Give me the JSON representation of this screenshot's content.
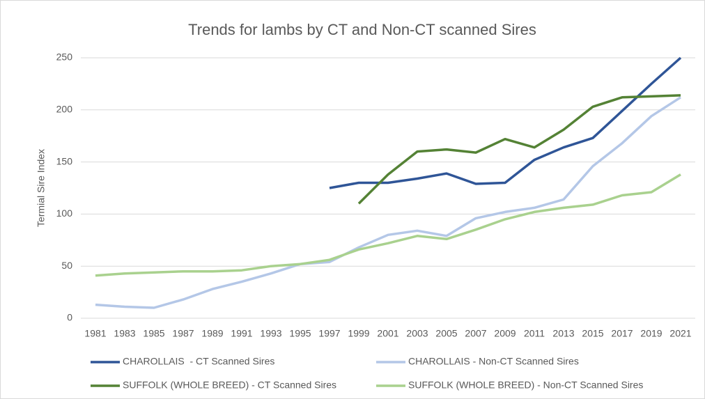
{
  "chart_data": {
    "type": "line",
    "title": "Trends for lambs by CT and Non-CT scanned Sires",
    "y_label": "Termial Sire Index",
    "categories": [
      "1981",
      "1983",
      "1985",
      "1987",
      "1989",
      "1991",
      "1993",
      "1995",
      "1997",
      "1999",
      "2001",
      "2003",
      "2005",
      "2007",
      "2009",
      "2011",
      "2013",
      "2015",
      "2017",
      "2019",
      "2021"
    ],
    "series": [
      {
        "name": "CHAROLLAIS  - CT Scanned Sires",
        "color": "#2f5597",
        "values": [
          null,
          null,
          null,
          null,
          null,
          null,
          null,
          null,
          125,
          130,
          130,
          134,
          139,
          129,
          130,
          152,
          164,
          173,
          199,
          225,
          250
        ]
      },
      {
        "name": "CHAROLLAIS - Non-CT Scanned Sires",
        "color": "#b4c7e7",
        "values": [
          13,
          11,
          10,
          18,
          28,
          35,
          43,
          52,
          54,
          68,
          80,
          84,
          79,
          96,
          102,
          106,
          114,
          146,
          168,
          194,
          212
        ]
      },
      {
        "name": "SUFFOLK (WHOLE BREED) - CT Scanned Sires",
        "color": "#548235",
        "values": [
          null,
          null,
          null,
          null,
          null,
          null,
          null,
          null,
          null,
          110,
          138,
          160,
          162,
          159,
          172,
          164,
          181,
          203,
          212,
          213,
          214
        ]
      },
      {
        "name": "SUFFOLK (WHOLE BREED) - Non-CT Scanned Sires",
        "color": "#a9d18e",
        "values": [
          41,
          43,
          44,
          45,
          45,
          46,
          50,
          52,
          56,
          66,
          72,
          79,
          76,
          85,
          95,
          102,
          106,
          109,
          118,
          121,
          138
        ]
      }
    ],
    "ylim": [
      0,
      250
    ],
    "yticks": [
      0,
      50,
      100,
      150,
      200,
      250
    ],
    "grid": true,
    "legend": "bottom"
  }
}
